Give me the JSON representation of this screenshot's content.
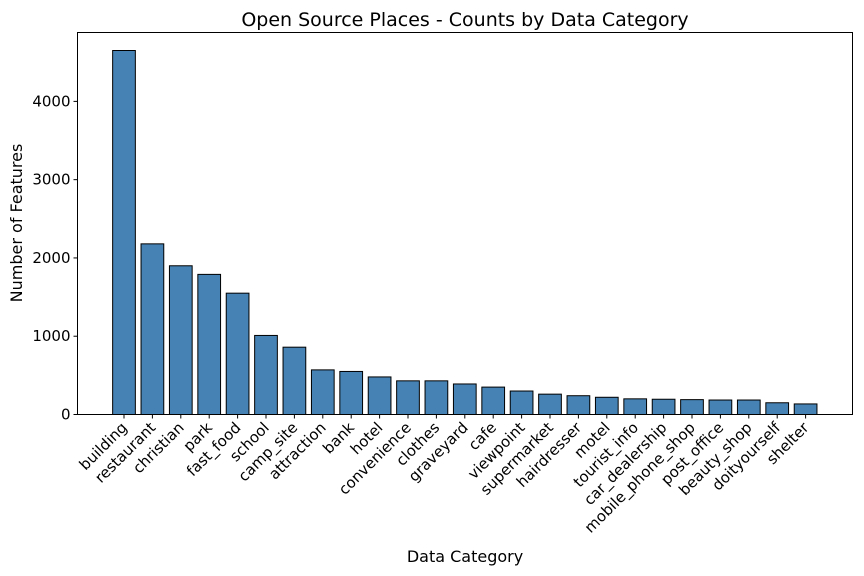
{
  "chart_data": {
    "type": "bar",
    "title": "Open Source Places - Counts by Data Category",
    "xlabel": "Data Category",
    "ylabel": "Number of Features",
    "categories": [
      "building",
      "restaurant",
      "christian",
      "park",
      "fast_food",
      "school",
      "camp_site",
      "attraction",
      "bank",
      "hotel",
      "convenience",
      "clothes",
      "graveyard",
      "cafe",
      "viewpoint",
      "supermarket",
      "hairdresser",
      "motel",
      "tourist_info",
      "car_dealership",
      "mobile_phone_shop",
      "post_office",
      "beauty_shop",
      "doityourself",
      "shelter"
    ],
    "values": [
      4650,
      2180,
      1900,
      1790,
      1550,
      1010,
      860,
      570,
      550,
      480,
      430,
      430,
      390,
      350,
      300,
      260,
      240,
      220,
      200,
      195,
      190,
      185,
      185,
      150,
      135
    ],
    "ylim": [
      0,
      4880
    ],
    "yticks": [
      0,
      1000,
      2000,
      3000,
      4000
    ],
    "grid": false,
    "bar_color": "#4682b4",
    "edge_color": "#000000"
  }
}
